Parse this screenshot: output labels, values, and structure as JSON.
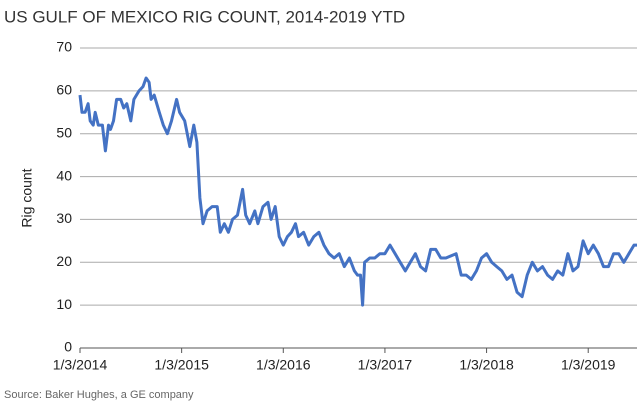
{
  "chart_data": {
    "type": "line",
    "title": "US GULF OF MEXICO RIG COUNT, 2014-2019 YTD",
    "y_label": "Rig count",
    "source": "Source: Baker Hughes, a GE company",
    "x": [
      2014.0,
      2014.02,
      2014.05,
      2014.08,
      2014.1,
      2014.13,
      2014.15,
      2014.18,
      2014.22,
      2014.25,
      2014.28,
      2014.3,
      2014.33,
      2014.36,
      2014.4,
      2014.43,
      2014.46,
      2014.5,
      2014.53,
      2014.58,
      2014.62,
      2014.65,
      2014.68,
      2014.7,
      2014.73,
      2014.78,
      2014.82,
      2014.86,
      2014.9,
      2014.95,
      2014.98,
      2015.03,
      2015.08,
      2015.12,
      2015.15,
      2015.18,
      2015.21,
      2015.25,
      2015.3,
      2015.35,
      2015.38,
      2015.42,
      2015.46,
      2015.5,
      2015.55,
      2015.6,
      2015.63,
      2015.67,
      2015.72,
      2015.75,
      2015.8,
      2015.85,
      2015.88,
      2015.92,
      2015.96,
      2016.0,
      2016.04,
      2016.08,
      2016.12,
      2016.15,
      2016.2,
      2016.25,
      2016.3,
      2016.35,
      2016.4,
      2016.45,
      2016.5,
      2016.55,
      2016.6,
      2016.65,
      2016.7,
      2016.73,
      2016.76,
      2016.78,
      2016.8,
      2016.85,
      2016.9,
      2016.95,
      2017.0,
      2017.05,
      2017.1,
      2017.15,
      2017.2,
      2017.25,
      2017.3,
      2017.35,
      2017.4,
      2017.45,
      2017.5,
      2017.55,
      2017.6,
      2017.7,
      2017.75,
      2017.8,
      2017.85,
      2017.9,
      2017.95,
      2018.0,
      2018.05,
      2018.1,
      2018.15,
      2018.2,
      2018.25,
      2018.3,
      2018.35,
      2018.4,
      2018.45,
      2018.5,
      2018.55,
      2018.6,
      2018.65,
      2018.7,
      2018.75,
      2018.8,
      2018.85,
      2018.9,
      2018.95,
      2019.0,
      2019.05,
      2019.1,
      2019.15,
      2019.2,
      2019.25,
      2019.3,
      2019.35,
      2019.4,
      2019.45,
      2019.48
    ],
    "series": [
      {
        "name": "Rig count",
        "color": "#4472c4",
        "values": [
          59,
          55,
          55,
          57,
          53,
          52,
          55,
          52,
          52,
          46,
          52,
          51,
          53,
          58,
          58,
          56,
          57,
          53,
          58,
          60,
          61,
          63,
          62,
          58,
          59,
          55,
          52,
          50,
          53,
          58,
          55,
          53,
          47,
          52,
          48,
          35,
          29,
          32,
          33,
          33,
          27,
          29,
          27,
          30,
          31,
          37,
          31,
          29,
          32,
          29,
          33,
          34,
          30,
          33,
          26,
          24,
          26,
          27,
          29,
          26,
          27,
          24,
          26,
          27,
          24,
          22,
          21,
          22,
          19,
          21,
          18,
          17,
          17,
          10,
          20,
          21,
          21,
          22,
          22,
          24,
          22,
          20,
          18,
          20,
          22,
          19,
          18,
          23,
          23,
          21,
          21,
          22,
          17,
          17,
          16,
          18,
          21,
          22,
          20,
          19,
          18,
          16,
          17,
          13,
          12,
          17,
          20,
          18,
          19,
          17,
          16,
          18,
          17,
          22,
          18,
          19,
          25,
          22,
          24,
          22,
          19,
          19,
          22,
          22,
          20,
          22,
          24,
          24
        ]
      }
    ],
    "xlim": [
      2014.0,
      2019.48
    ],
    "xticks": [
      {
        "value": 2014.0,
        "label": "1/3/2014"
      },
      {
        "value": 2015.0,
        "label": "1/3/2015"
      },
      {
        "value": 2016.0,
        "label": "1/3/2016"
      },
      {
        "value": 2017.0,
        "label": "1/3/2017"
      },
      {
        "value": 2018.0,
        "label": "1/3/2018"
      },
      {
        "value": 2019.0,
        "label": "1/3/2019"
      }
    ],
    "ylim": [
      0,
      70
    ],
    "yticks": [
      0,
      10,
      20,
      30,
      40,
      50,
      60,
      70
    ],
    "grid": true
  }
}
